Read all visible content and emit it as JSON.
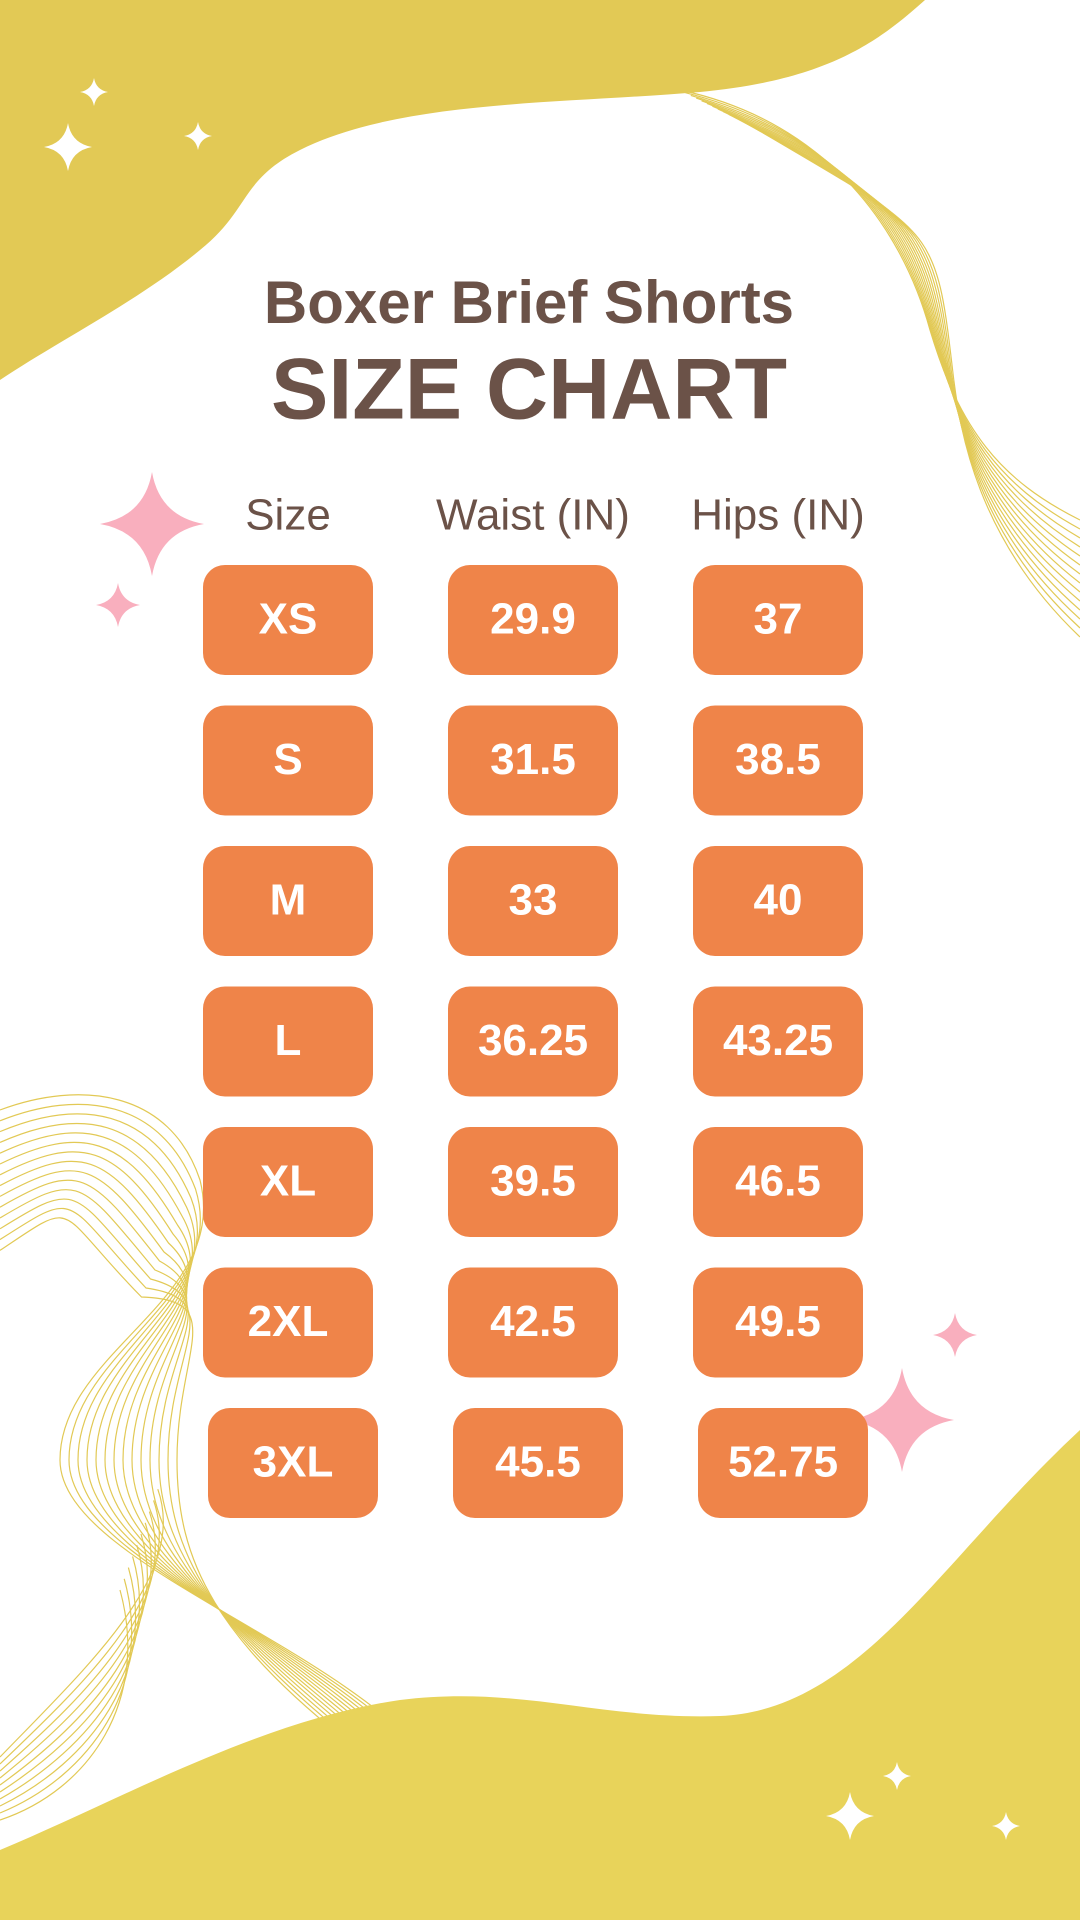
{
  "header": {
    "subtitle": "Boxer Brief Shorts",
    "title": "SIZE CHART"
  },
  "table": {
    "columns": [
      "Size",
      "Waist (IN)",
      "Hips (IN)"
    ],
    "rows": [
      [
        "XS",
        "29.9",
        "37"
      ],
      [
        "S",
        "31.5",
        "38.5"
      ],
      [
        "M",
        "33",
        "40"
      ],
      [
        "L",
        "36.25",
        "43.25"
      ],
      [
        "XL",
        "39.5",
        "46.5"
      ],
      [
        "2XL",
        "42.5",
        "49.5"
      ],
      [
        "3XL",
        "45.5",
        "52.75"
      ]
    ]
  }
}
